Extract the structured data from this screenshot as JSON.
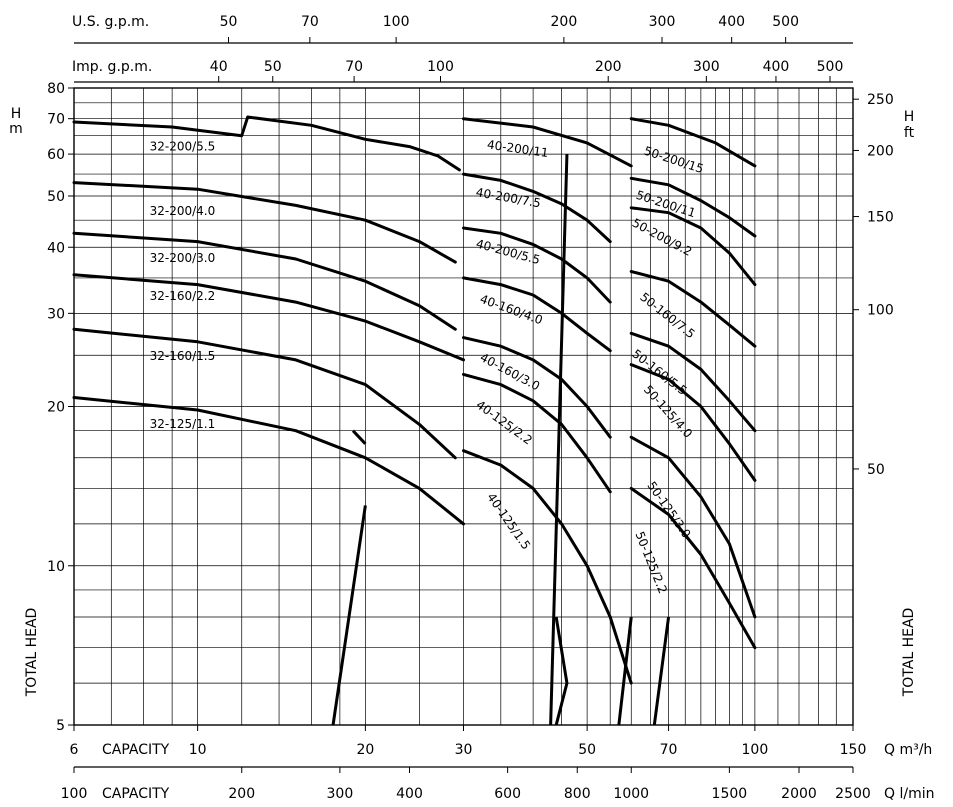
{
  "chart_data": {
    "type": "line",
    "x_scale": "log",
    "y_scale": "log",
    "xlim": [
      6,
      150
    ],
    "ylim": [
      5,
      80
    ],
    "x_ticks": [
      "6",
      "10",
      "20",
      "30",
      "50",
      "70",
      "100",
      "150"
    ],
    "y_ticks": [
      "5",
      "10",
      "20",
      "30",
      "40",
      "50",
      "60",
      "70",
      "80"
    ],
    "x_unit": "Q m³/h",
    "y_unit_left": "H m",
    "y_unit_right": "H ft",
    "axis_word_capacity": "CAPACITY",
    "axis_word_head": "TOTAL HEAD",
    "top_axis_us": {
      "label": "U.S. g.p.m.",
      "ticks": [
        {
          "label": "50",
          "q": 11.36
        },
        {
          "label": "70",
          "q": 15.9
        },
        {
          "label": "100",
          "q": 22.71
        },
        {
          "label": "200",
          "q": 45.42
        },
        {
          "label": "300",
          "q": 68.13
        },
        {
          "label": "400",
          "q": 90.85
        },
        {
          "label": "500",
          "q": 113.56
        }
      ]
    },
    "top_axis_imp": {
      "label": "Imp. g.p.m.",
      "ticks": [
        {
          "label": "40",
          "q": 10.91
        },
        {
          "label": "50",
          "q": 13.64
        },
        {
          "label": "70",
          "q": 19.09
        },
        {
          "label": "100",
          "q": 27.28
        },
        {
          "label": "200",
          "q": 54.55
        },
        {
          "label": "300",
          "q": 81.83
        },
        {
          "label": "400",
          "q": 109.1
        },
        {
          "label": "500",
          "q": 136.4
        }
      ]
    },
    "bottom_axis_lmin": {
      "label": "Q l/min",
      "ticks": [
        {
          "label": "100",
          "q": 6
        },
        {
          "label": "200",
          "q": 12
        },
        {
          "label": "300",
          "q": 18
        },
        {
          "label": "400",
          "q": 24
        },
        {
          "label": "600",
          "q": 36
        },
        {
          "label": "800",
          "q": 48
        },
        {
          "label": "1000",
          "q": 60
        },
        {
          "label": "1500",
          "q": 90
        },
        {
          "label": "2000",
          "q": 120
        },
        {
          "label": "2500",
          "q": 150
        }
      ]
    },
    "right_axis_ft": {
      "ticks": [
        {
          "label": "50",
          "h": 15.24
        },
        {
          "label": "100",
          "h": 30.48
        },
        {
          "label": "150",
          "h": 45.72
        },
        {
          "label": "200",
          "h": 60.96
        },
        {
          "label": "250",
          "h": 76.2
        }
      ]
    },
    "series": [
      {
        "name": "32-200/5.5",
        "points": [
          [
            6,
            69
          ],
          [
            9,
            67.5
          ],
          [
            12,
            65
          ],
          [
            12.3,
            70.5
          ],
          [
            16,
            68
          ],
          [
            20,
            64
          ],
          [
            24,
            62
          ],
          [
            27,
            59.5
          ],
          [
            29.5,
            56
          ]
        ]
      },
      {
        "name": "32-200/4.0",
        "points": [
          [
            6,
            53
          ],
          [
            10,
            51.5
          ],
          [
            15,
            48
          ],
          [
            20,
            45
          ],
          [
            25,
            41
          ],
          [
            29,
            37.5
          ]
        ]
      },
      {
        "name": "32-200/3.0",
        "points": [
          [
            6,
            42.5
          ],
          [
            10,
            41
          ],
          [
            15,
            38
          ],
          [
            20,
            34.5
          ],
          [
            25,
            31
          ],
          [
            29,
            28
          ]
        ]
      },
      {
        "name": "32-160/2.2",
        "points": [
          [
            6,
            35.5
          ],
          [
            10,
            34
          ],
          [
            15,
            31.5
          ],
          [
            20,
            29
          ],
          [
            25,
            26.5
          ],
          [
            30,
            24.5
          ]
        ]
      },
      {
        "name": "32-160/1.5",
        "points": [
          [
            6,
            28
          ],
          [
            10,
            26.5
          ],
          [
            15,
            24.5
          ],
          [
            20,
            22
          ],
          [
            25,
            18.5
          ],
          [
            29,
            16
          ]
        ]
      },
      {
        "name": "32-125/1.1",
        "points": [
          [
            6,
            20.8
          ],
          [
            10,
            19.7
          ],
          [
            15,
            18
          ],
          [
            20,
            16
          ],
          [
            25,
            14
          ],
          [
            30,
            12
          ]
        ]
      },
      {
        "name": "40-200/11",
        "points": [
          [
            30,
            70
          ],
          [
            40,
            67.5
          ],
          [
            50,
            63
          ],
          [
            60,
            57
          ]
        ]
      },
      {
        "name": "40-200/7.5",
        "points": [
          [
            30,
            55
          ],
          [
            35,
            53.5
          ],
          [
            40,
            51
          ],
          [
            45,
            48.3
          ],
          [
            50,
            45
          ],
          [
            55,
            41
          ]
        ]
      },
      {
        "name": "40-200/5.5",
        "points": [
          [
            30,
            43.5
          ],
          [
            35,
            42.5
          ],
          [
            40,
            40.5
          ],
          [
            45,
            38
          ],
          [
            50,
            35
          ],
          [
            55,
            31.5
          ]
        ]
      },
      {
        "name": "40-160/4.0",
        "points": [
          [
            30,
            35
          ],
          [
            35,
            34
          ],
          [
            40,
            32.5
          ],
          [
            45,
            30
          ],
          [
            50,
            27.5
          ],
          [
            55,
            25.5
          ]
        ]
      },
      {
        "name": "40-160/3.0",
        "points": [
          [
            30,
            27
          ],
          [
            35,
            26
          ],
          [
            40,
            24.5
          ],
          [
            45,
            22.5
          ],
          [
            50,
            20
          ],
          [
            55,
            17.5
          ]
        ]
      },
      {
        "name": "40-125/2.2",
        "points": [
          [
            30,
            23
          ],
          [
            35,
            22
          ],
          [
            40,
            20.5
          ],
          [
            45,
            18.5
          ],
          [
            50,
            16
          ],
          [
            55,
            13.8
          ]
        ]
      },
      {
        "name": "40-125/1.5",
        "points": [
          [
            30,
            16.5
          ],
          [
            35,
            15.5
          ],
          [
            40,
            14
          ],
          [
            45,
            12
          ],
          [
            50,
            10
          ],
          [
            55,
            8
          ],
          [
            60,
            6
          ]
        ]
      },
      {
        "name": "50-200/15",
        "points": [
          [
            60,
            70
          ],
          [
            70,
            68
          ],
          [
            85,
            63
          ],
          [
            100,
            57
          ]
        ]
      },
      {
        "name": "50-200/11",
        "points": [
          [
            60,
            54
          ],
          [
            70,
            52.5
          ],
          [
            80,
            49
          ],
          [
            90,
            45.5
          ],
          [
            100,
            42
          ]
        ]
      },
      {
        "name": "50-200/9.2",
        "points": [
          [
            60,
            47.5
          ],
          [
            70,
            46.5
          ],
          [
            80,
            43.5
          ],
          [
            90,
            39
          ],
          [
            100,
            34
          ]
        ]
      },
      {
        "name": "50-160/7.5",
        "points": [
          [
            60,
            36
          ],
          [
            70,
            34.5
          ],
          [
            80,
            31.5
          ],
          [
            90,
            28.5
          ],
          [
            100,
            26
          ]
        ]
      },
      {
        "name": "50-160/5.5",
        "points": [
          [
            60,
            27.5
          ],
          [
            70,
            26
          ],
          [
            80,
            23.5
          ],
          [
            90,
            20.5
          ],
          [
            100,
            18
          ]
        ]
      },
      {
        "name": "50-125/4.0",
        "points": [
          [
            60,
            24
          ],
          [
            70,
            22.5
          ],
          [
            80,
            20
          ],
          [
            90,
            17
          ],
          [
            100,
            14.5
          ]
        ]
      },
      {
        "name": "50-125/3.0",
        "points": [
          [
            60,
            17.5
          ],
          [
            70,
            16
          ],
          [
            80,
            13.5
          ],
          [
            90,
            11
          ],
          [
            100,
            8
          ]
        ]
      },
      {
        "name": "50-125/2.2",
        "points": [
          [
            60,
            14
          ],
          [
            70,
            12.5
          ],
          [
            80,
            10.5
          ],
          [
            90,
            8.5
          ],
          [
            100,
            7
          ]
        ]
      }
    ]
  }
}
